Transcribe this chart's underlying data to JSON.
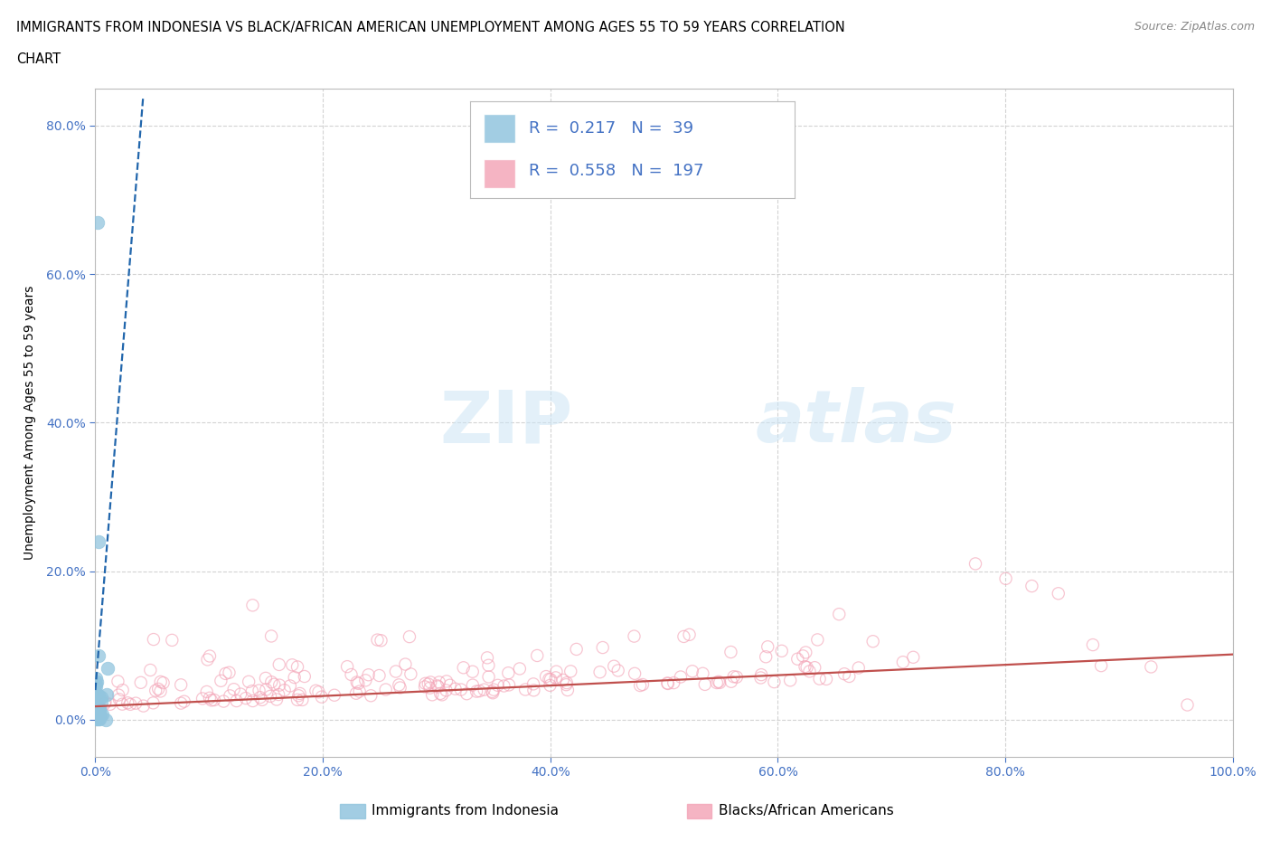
{
  "title_line1": "IMMIGRANTS FROM INDONESIA VS BLACK/AFRICAN AMERICAN UNEMPLOYMENT AMONG AGES 55 TO 59 YEARS CORRELATION",
  "title_line2": "CHART",
  "source": "Source: ZipAtlas.com",
  "ylabel": "Unemployment Among Ages 55 to 59 years",
  "watermark_zip": "ZIP",
  "watermark_atlas": "atlas",
  "legend1_label": "Immigrants from Indonesia",
  "legend2_label": "Blacks/African Americans",
  "R1": 0.217,
  "N1": 39,
  "R2": 0.558,
  "N2": 197,
  "blue_color": "#92c5de",
  "blue_fill": "#92c5de",
  "pink_color": "#f4a7b9",
  "pink_fill": "#f4a7b9",
  "blue_line_color": "#2166ac",
  "pink_line_color": "#c0504d",
  "xlim": [
    0.0,
    1.0
  ],
  "ylim": [
    -0.05,
    0.85
  ],
  "xticks": [
    0.0,
    0.2,
    0.4,
    0.6,
    0.8,
    1.0
  ],
  "yticks": [
    0.0,
    0.2,
    0.4,
    0.6,
    0.8
  ],
  "xticklabels": [
    "0.0%",
    "20.0%",
    "40.0%",
    "60.0%",
    "80.0%",
    "100.0%"
  ],
  "yticklabels": [
    "0.0%",
    "20.0%",
    "40.0%",
    "60.0%",
    "80.0%"
  ],
  "tick_color": "#4472c4",
  "grid_color": "#c8c8c8",
  "background_color": "#ffffff"
}
